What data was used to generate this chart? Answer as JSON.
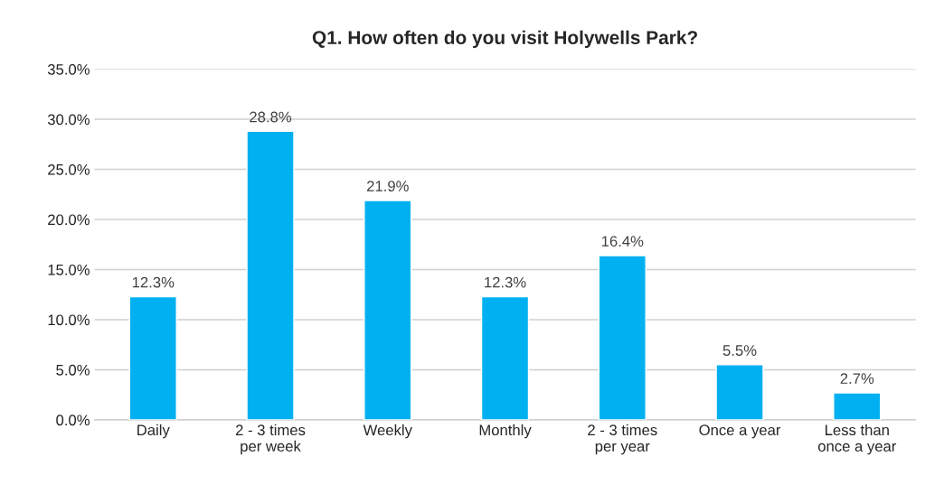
{
  "chart_data": {
    "type": "bar",
    "title": "Q1. How often do you visit Holywells Park?",
    "categories": [
      "Daily",
      "2 - 3 times\nper week",
      "Weekly",
      "Monthly",
      "2 - 3 times\nper year",
      "Once a year",
      "Less than\nonce a year"
    ],
    "values": [
      12.3,
      28.8,
      21.9,
      12.3,
      16.4,
      5.5,
      2.7
    ],
    "value_labels": [
      "12.3%",
      "28.8%",
      "21.9%",
      "12.3%",
      "16.4%",
      "5.5%",
      "2.7%"
    ],
    "color": "#00b0f0",
    "ylim": [
      0,
      35
    ],
    "yticks": [
      {
        "value": 0,
        "label": "0.0%"
      },
      {
        "value": 5,
        "label": "5.0%"
      },
      {
        "value": 10,
        "label": "10.0%"
      },
      {
        "value": 15,
        "label": "15.0%"
      },
      {
        "value": 20,
        "label": "20.0%"
      },
      {
        "value": 25,
        "label": "25.0%"
      },
      {
        "value": 30,
        "label": "30.0%"
      },
      {
        "value": 35,
        "label": "35.0%"
      }
    ],
    "grid": "y",
    "legend": false
  }
}
